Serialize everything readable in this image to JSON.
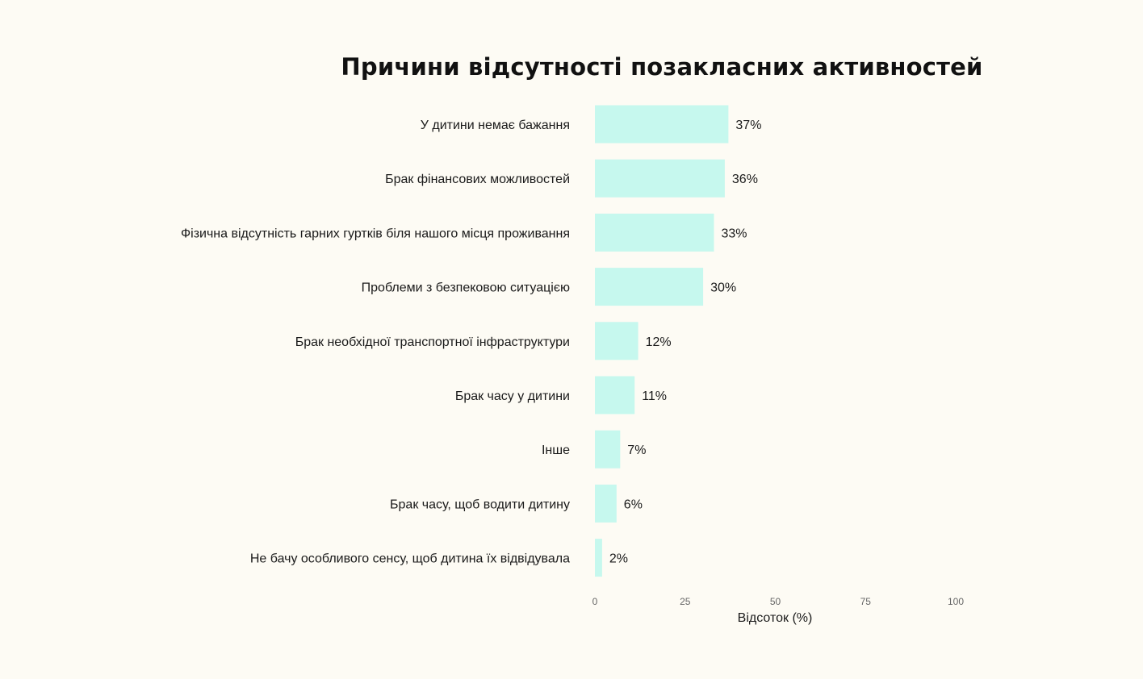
{
  "chart_data": {
    "type": "bar",
    "orientation": "horizontal",
    "title": "Причини відсутності позакласних активностей",
    "xlabel": "Відсоток (%)",
    "ylabel": "",
    "xlim": [
      0,
      100
    ],
    "ticks": [
      0,
      25,
      50,
      75,
      100
    ],
    "tick_labels": [
      "0",
      "25",
      "50",
      "75",
      "100"
    ],
    "bar_color": "#c6f8ee",
    "grid": false,
    "categories": [
      "У дитини немає бажання",
      "Брак фінансових можливостей",
      "Фізична відсутність гарних гуртків біля нашого місця проживання",
      "Проблеми з безпековою ситуацією",
      "Брак необхідної транспортної інфраструктури",
      "Брак часу у дитини",
      "Інше",
      "Брак часу, щоб водити дитину",
      "Не бачу особливого сенсу, щоб дитина їх відвідувала"
    ],
    "values": [
      37,
      36,
      33,
      30,
      12,
      11,
      7,
      6,
      2
    ],
    "value_labels": [
      "37%",
      "36%",
      "33%",
      "30%",
      "12%",
      "11%",
      "7%",
      "6%",
      "2%"
    ]
  }
}
